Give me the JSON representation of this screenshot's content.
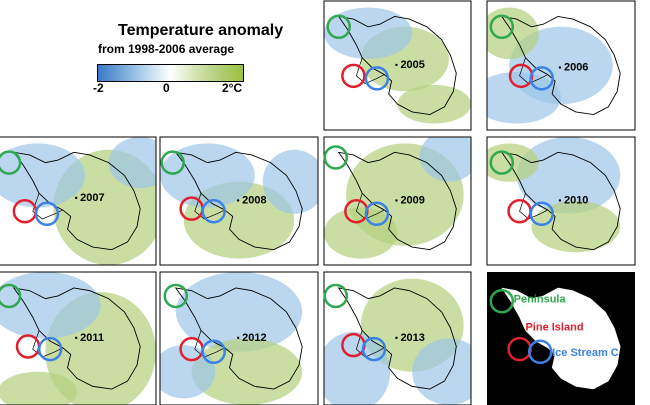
{
  "title": "Temperature anomaly",
  "subtitle": "from 1998-2006 average",
  "colorbar": {
    "min_label": "-2",
    "mid_label": "0",
    "max_label": "2°C",
    "colors": [
      "#3a78c8",
      "#79acd9",
      "#bcd8ee",
      "#ffffff",
      "#d7e7b6",
      "#b4d07e",
      "#9cc23e"
    ]
  },
  "chart_data": {
    "type": "heatmap",
    "title": "Temperature anomaly",
    "subtitle": "from 1998-2006 average",
    "unit": "°C",
    "scale_range": [
      -2,
      2
    ],
    "years": [
      "2005",
      "2006",
      "2007",
      "2008",
      "2009",
      "2010",
      "2011",
      "2012",
      "2013"
    ],
    "regions": [
      {
        "name": "Peninsula",
        "color": "#2fa84f"
      },
      {
        "name": "Pine Island",
        "color": "#e0202e"
      },
      {
        "name": "Ice Stream C",
        "color": "#3c82e6"
      }
    ],
    "legend_panel": "bottom-right"
  }
}
